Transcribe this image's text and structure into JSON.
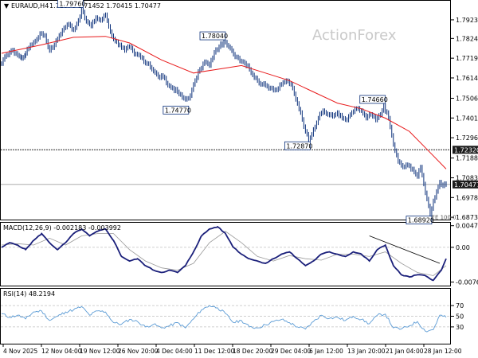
{
  "header": {
    "symbol": "EURAUD,H4",
    "ohlc": "1.71076 1.71452 1.70415 1.70477",
    "watermark": "ActionForex"
  },
  "colors": {
    "candle": "#0a2f7a",
    "ma": "#e8191a",
    "macd": "#1a1f7a",
    "signal": "#9a9a9a",
    "rsi": "#5b9bd5",
    "level": "#2a2a2a"
  },
  "chart_data": [
    {
      "type": "line",
      "name": "price",
      "ylim": [
        1.6865,
        1.802
      ],
      "y_ticks": [
        "1.79230",
        "1.78240",
        "1.77190",
        "1.76140",
        "1.75060",
        "1.74010",
        "1.72960",
        "1.71880",
        "1.70830",
        "1.69780",
        "1.68730"
      ],
      "y_tick_values": [
        1.7923,
        1.7824,
        1.7719,
        1.7614,
        1.7506,
        1.7401,
        1.7296,
        1.7188,
        1.7083,
        1.6978,
        1.6873
      ],
      "x_labels": [
        "4 Nov 2025",
        "12 Nov 04:00",
        "19 Nov 12:00",
        "26 Nov 20:00",
        "4 Dec 04:00",
        "11 Dec 12:00",
        "18 Dec 20:00",
        "29 Dec 04:00",
        "6 Jan 12:00",
        "13 Jan 20:00",
        "21 Jan 04:00",
        "28 Jan 12:00"
      ],
      "price_points": [
        [
          0,
          1.769
        ],
        [
          6,
          1.7735
        ],
        [
          12,
          1.776
        ],
        [
          18,
          1.7745
        ],
        [
          25,
          1.7718
        ],
        [
          30,
          1.7745
        ],
        [
          36,
          1.779
        ],
        [
          42,
          1.781
        ],
        [
          48,
          1.785
        ],
        [
          54,
          1.784
        ],
        [
          60,
          1.776
        ],
        [
          66,
          1.779
        ],
        [
          72,
          1.784
        ],
        [
          78,
          1.788
        ],
        [
          84,
          1.79
        ],
        [
          90,
          1.787
        ],
        [
          96,
          1.792
        ],
        [
          100,
          1.7976
        ],
        [
          106,
          1.7915
        ],
        [
          112,
          1.789
        ],
        [
          118,
          1.7935
        ],
        [
          124,
          1.792
        ],
        [
          130,
          1.795
        ],
        [
          136,
          1.786
        ],
        [
          142,
          1.781
        ],
        [
          148,
          1.779
        ],
        [
          154,
          1.776
        ],
        [
          160,
          1.778
        ],
        [
          166,
          1.774
        ],
        [
          172,
          1.7735
        ],
        [
          178,
          1.77
        ],
        [
          184,
          1.769
        ],
        [
          190,
          1.765
        ],
        [
          196,
          1.762
        ],
        [
          202,
          1.762
        ],
        [
          208,
          1.7575
        ],
        [
          214,
          1.756
        ],
        [
          220,
          1.754
        ],
        [
          226,
          1.751
        ],
        [
          230,
          1.75
        ],
        [
          236,
          1.752
        ],
        [
          242,
          1.76
        ],
        [
          248,
          1.766
        ],
        [
          254,
          1.77
        ],
        [
          260,
          1.768
        ],
        [
          266,
          1.775
        ],
        [
          272,
          1.778
        ],
        [
          278,
          1.7804
        ],
        [
          284,
          1.778
        ],
        [
          290,
          1.774
        ],
        [
          296,
          1.772
        ],
        [
          302,
          1.77
        ],
        [
          308,
          1.768
        ],
        [
          314,
          1.763
        ],
        [
          320,
          1.76
        ],
        [
          326,
          1.758
        ],
        [
          332,
          1.757
        ],
        [
          338,
          1.756
        ],
        [
          344,
          1.755
        ],
        [
          350,
          1.758
        ],
        [
          356,
          1.76
        ],
        [
          362,
          1.758
        ],
        [
          368,
          1.75
        ],
        [
          374,
          1.743
        ],
        [
          380,
          1.733
        ],
        [
          384,
          1.7287
        ],
        [
          390,
          1.734
        ],
        [
          396,
          1.74
        ],
        [
          402,
          1.744
        ],
        [
          408,
          1.742
        ],
        [
          414,
          1.741
        ],
        [
          420,
          1.743
        ],
        [
          426,
          1.74
        ],
        [
          432,
          1.739
        ],
        [
          438,
          1.743
        ],
        [
          444,
          1.745
        ],
        [
          450,
          1.744
        ],
        [
          456,
          1.74
        ],
        [
          462,
          1.742
        ],
        [
          468,
          1.739
        ],
        [
          474,
          1.742
        ],
        [
          478,
          1.7466
        ],
        [
          484,
          1.74
        ],
        [
          490,
          1.726
        ],
        [
          496,
          1.717
        ],
        [
          502,
          1.714
        ],
        [
          508,
          1.715
        ],
        [
          514,
          1.713
        ],
        [
          520,
          1.709
        ],
        [
          524,
          1.714
        ],
        [
          528,
          1.705
        ],
        [
          532,
          1.697
        ],
        [
          536,
          1.6892
        ],
        [
          540,
          1.696
        ],
        [
          544,
          1.701
        ],
        [
          548,
          1.706
        ],
        [
          552,
          1.704
        ],
        [
          556,
          1.7047
        ]
      ],
      "ma_points": [
        [
          0,
          1.7745
        ],
        [
          50,
          1.779
        ],
        [
          90,
          1.783
        ],
        [
          130,
          1.7835
        ],
        [
          160,
          1.78
        ],
        [
          200,
          1.771
        ],
        [
          240,
          1.764
        ],
        [
          270,
          1.766
        ],
        [
          300,
          1.768
        ],
        [
          330,
          1.764
        ],
        [
          360,
          1.76
        ],
        [
          390,
          1.754
        ],
        [
          420,
          1.748
        ],
        [
          450,
          1.745
        ],
        [
          480,
          1.74
        ],
        [
          510,
          1.733
        ],
        [
          540,
          1.72
        ],
        [
          556,
          1.713
        ]
      ],
      "level_line": 1.7232,
      "current_line": 1.70477,
      "level_label": "1.72320",
      "current_label": "1.70477",
      "annotations": [
        "1.79760",
        "1.78040",
        "1.74770",
        "1.72870",
        "1.74660",
        "1.68920"
      ],
      "annotation_values": [
        1.7976,
        1.7804,
        1.7477,
        1.7287,
        1.7466,
        1.6892
      ],
      "fib_label": "FE 100.0"
    },
    {
      "type": "line",
      "name": "macd",
      "label": "MACD(12,26,9) -0.002183 -0.003992",
      "ylim": [
        -0.0082,
        0.0052
      ],
      "y_ticks": [
        "0.004731",
        "0.00",
        "-0.007601"
      ],
      "y_tick_values": [
        0.004731,
        0.0,
        -0.007601
      ],
      "macd_points": [
        [
          0,
          0.0
        ],
        [
          10,
          0.001
        ],
        [
          20,
          0.0005
        ],
        [
          30,
          -0.0005
        ],
        [
          40,
          0.0015
        ],
        [
          50,
          0.003
        ],
        [
          60,
          0.001
        ],
        [
          70,
          -0.0005
        ],
        [
          80,
          0.001
        ],
        [
          90,
          0.003
        ],
        [
          100,
          0.004
        ],
        [
          110,
          0.0025
        ],
        [
          120,
          0.0035
        ],
        [
          130,
          0.004
        ],
        [
          140,
          0.0015
        ],
        [
          150,
          -0.002
        ],
        [
          160,
          -0.003
        ],
        [
          170,
          -0.0025
        ],
        [
          180,
          -0.004
        ],
        [
          190,
          -0.005
        ],
        [
          200,
          -0.0055
        ],
        [
          210,
          -0.005
        ],
        [
          220,
          -0.0055
        ],
        [
          230,
          -0.004
        ],
        [
          240,
          -0.001
        ],
        [
          250,
          0.0025
        ],
        [
          260,
          0.004
        ],
        [
          270,
          0.0045
        ],
        [
          280,
          0.003
        ],
        [
          290,
          0.0
        ],
        [
          300,
          -0.0015
        ],
        [
          310,
          -0.0025
        ],
        [
          320,
          -0.003
        ],
        [
          330,
          -0.0035
        ],
        [
          340,
          -0.0025
        ],
        [
          350,
          -0.0015
        ],
        [
          360,
          -0.001
        ],
        [
          370,
          -0.0025
        ],
        [
          380,
          -0.004
        ],
        [
          390,
          -0.003
        ],
        [
          400,
          -0.0015
        ],
        [
          410,
          -0.001
        ],
        [
          420,
          -0.0015
        ],
        [
          430,
          -0.002
        ],
        [
          440,
          -0.001
        ],
        [
          450,
          -0.0015
        ],
        [
          460,
          -0.003
        ],
        [
          470,
          -0.0005
        ],
        [
          480,
          0.0005
        ],
        [
          490,
          -0.004
        ],
        [
          500,
          -0.006
        ],
        [
          510,
          -0.0065
        ],
        [
          520,
          -0.006
        ],
        [
          530,
          -0.0062
        ],
        [
          540,
          -0.0072
        ],
        [
          550,
          -0.005
        ],
        [
          556,
          -0.0025
        ]
      ],
      "signal_points": [
        [
          0,
          0.0005
        ],
        [
          20,
          0.0008
        ],
        [
          40,
          0.0005
        ],
        [
          60,
          0.002
        ],
        [
          80,
          0.0005
        ],
        [
          100,
          0.0025
        ],
        [
          120,
          0.003
        ],
        [
          140,
          0.003
        ],
        [
          160,
          -0.0005
        ],
        [
          180,
          -0.003
        ],
        [
          200,
          -0.0045
        ],
        [
          220,
          -0.005
        ],
        [
          240,
          -0.0035
        ],
        [
          260,
          0.001
        ],
        [
          280,
          0.0035
        ],
        [
          300,
          0.001
        ],
        [
          320,
          -0.002
        ],
        [
          340,
          -0.003
        ],
        [
          360,
          -0.0018
        ],
        [
          380,
          -0.0025
        ],
        [
          400,
          -0.0028
        ],
        [
          420,
          -0.0015
        ],
        [
          440,
          -0.0015
        ],
        [
          460,
          -0.002
        ],
        [
          480,
          -0.001
        ],
        [
          500,
          -0.0035
        ],
        [
          520,
          -0.0055
        ],
        [
          540,
          -0.0062
        ],
        [
          556,
          -0.004
        ]
      ],
      "trendline": [
        [
          460,
          0.0025
        ],
        [
          548,
          -0.0035
        ]
      ]
    },
    {
      "type": "line",
      "name": "rsi",
      "label": "RSI(14) 48.2194",
      "ylim": [
        0,
        100
      ],
      "y_ticks": [
        "70",
        "50",
        "30"
      ],
      "y_tick_values": [
        70,
        50,
        30
      ],
      "rsi_points": [
        [
          0,
          55
        ],
        [
          10,
          48
        ],
        [
          20,
          52
        ],
        [
          30,
          45
        ],
        [
          40,
          58
        ],
        [
          50,
          60
        ],
        [
          60,
          42
        ],
        [
          70,
          50
        ],
        [
          80,
          58
        ],
        [
          90,
          62
        ],
        [
          100,
          68
        ],
        [
          110,
          52
        ],
        [
          120,
          60
        ],
        [
          130,
          58
        ],
        [
          140,
          38
        ],
        [
          150,
          35
        ],
        [
          160,
          44
        ],
        [
          170,
          40
        ],
        [
          180,
          30
        ],
        [
          190,
          35
        ],
        [
          200,
          28
        ],
        [
          210,
          32
        ],
        [
          220,
          38
        ],
        [
          230,
          28
        ],
        [
          240,
          45
        ],
        [
          250,
          62
        ],
        [
          260,
          70
        ],
        [
          270,
          66
        ],
        [
          280,
          55
        ],
        [
          290,
          38
        ],
        [
          300,
          42
        ],
        [
          310,
          30
        ],
        [
          320,
          28
        ],
        [
          330,
          34
        ],
        [
          340,
          40
        ],
        [
          350,
          44
        ],
        [
          360,
          38
        ],
        [
          370,
          30
        ],
        [
          380,
          26
        ],
        [
          390,
          40
        ],
        [
          400,
          52
        ],
        [
          410,
          46
        ],
        [
          420,
          48
        ],
        [
          430,
          42
        ],
        [
          440,
          50
        ],
        [
          450,
          44
        ],
        [
          460,
          36
        ],
        [
          470,
          52
        ],
        [
          480,
          54
        ],
        [
          490,
          28
        ],
        [
          500,
          26
        ],
        [
          510,
          32
        ],
        [
          520,
          40
        ],
        [
          530,
          22
        ],
        [
          540,
          25
        ],
        [
          548,
          52
        ],
        [
          556,
          48
        ]
      ]
    }
  ]
}
